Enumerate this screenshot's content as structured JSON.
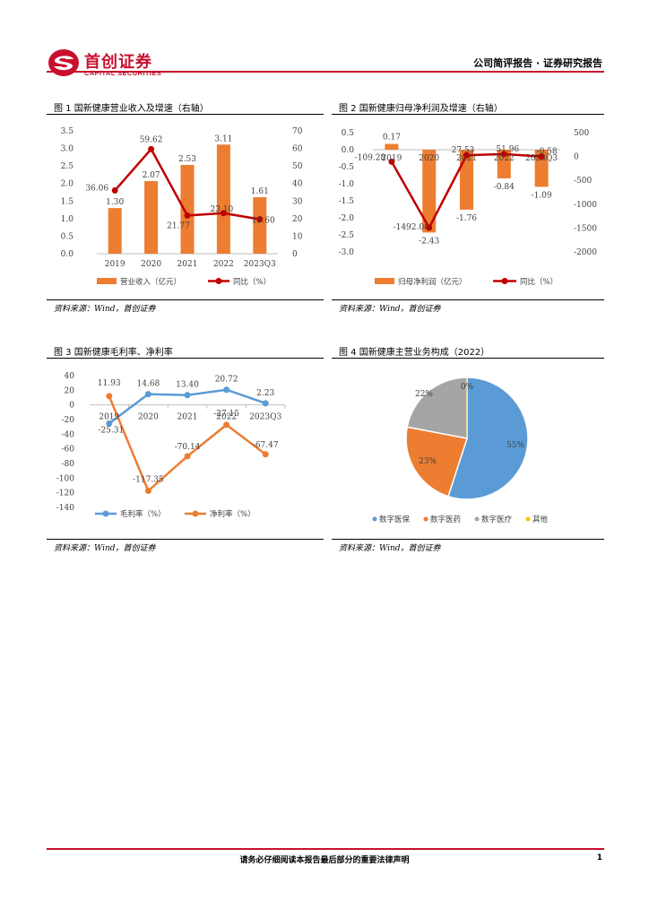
{
  "header": {
    "logo_cn": "首创证券",
    "logo_en": "CAPITAL SECURITIES",
    "report_type": "公司简评报告 · 证券研究报告",
    "brand_color": "#c8102e"
  },
  "figures": [
    {
      "title": "图 1  国新健康营业收入及增速（右轴）",
      "source": "资料来源：Wind，首创证券"
    },
    {
      "title": "图 2  国新健康归母净利润及增速（右轴）",
      "source": "资料来源：Wind，首创证券"
    },
    {
      "title": "图 3  国新健康毛利率、净利率",
      "source": "资料来源：Wind，首创证券"
    },
    {
      "title": "图 4  国新健康主营业务构成（2022）",
      "source": "资料来源：Wind，首创证券"
    }
  ],
  "footer": {
    "disclaimer": "请务必仔细阅读本报告最后部分的重要法律声明",
    "page": "1"
  },
  "chart_data": [
    {
      "type": "bar",
      "categories": [
        "2019",
        "2020",
        "2021",
        "2022",
        "2023Q3"
      ],
      "series": [
        {
          "name": "营业收入（亿元）",
          "type": "bar",
          "axis": "left",
          "values": [
            1.3,
            2.07,
            2.53,
            3.11,
            1.61
          ],
          "labels": [
            "1.30",
            "2.07",
            "2.53",
            "3.11",
            "1.61"
          ],
          "color": "#ed7d31"
        },
        {
          "name": "同比（%）",
          "type": "line",
          "axis": "right",
          "values": [
            36.06,
            59.62,
            21.77,
            23.1,
            19.6
          ],
          "labels": [
            "36.06",
            "59.62",
            "21.77",
            "23.10",
            "19.60"
          ],
          "color": "#c00000"
        }
      ],
      "ylim": [
        0,
        3.5
      ],
      "yticks": [
        "0.0",
        "0.5",
        "1.0",
        "1.5",
        "2.0",
        "2.5",
        "3.0",
        "3.5"
      ],
      "y2lim": [
        0,
        70
      ],
      "y2ticks": [
        "0",
        "10",
        "20",
        "30",
        "40",
        "50",
        "60",
        "70"
      ],
      "legend": "bottom"
    },
    {
      "type": "bar",
      "categories": [
        "2019",
        "2020",
        "2021",
        "2022",
        "2023Q3"
      ],
      "series": [
        {
          "name": "归母净利润（亿元）",
          "type": "bar",
          "axis": "left",
          "values": [
            0.17,
            -2.43,
            -1.76,
            -0.84,
            -1.09
          ],
          "labels": [
            "0.17",
            "-2.43",
            "-1.76",
            "-0.84",
            "-1.09"
          ],
          "color": "#ed7d31"
        },
        {
          "name": "同比（%）",
          "type": "line",
          "axis": "right",
          "values": [
            -109.28,
            -1492.06,
            27.53,
            51.96,
            -0.58
          ],
          "labels": [
            "-109.28",
            "-1492.06",
            "27.53",
            "51.96",
            "-0.58"
          ],
          "color": "#c00000"
        }
      ],
      "ylim": [
        -3.0,
        0.5
      ],
      "yticks": [
        "-3.0",
        "-2.5",
        "-2.0",
        "-1.5",
        "-1.0",
        "-0.5",
        "0.0",
        "0.5"
      ],
      "y2lim": [
        -2000,
        500
      ],
      "y2ticks": [
        "-2000",
        "-1500",
        "-1000",
        "-500",
        "0",
        "500"
      ],
      "legend": "bottom"
    },
    {
      "type": "line",
      "categories": [
        "2019",
        "2020",
        "2021",
        "2022",
        "2023Q3"
      ],
      "series": [
        {
          "name": "毛利率（%）",
          "values": [
            -25.31,
            14.68,
            13.4,
            20.72,
            2.23
          ],
          "labels": [
            "-25.31",
            "14.68",
            "13.40",
            "20.72",
            "2.23"
          ],
          "color": "#5b9bd5"
        },
        {
          "name": "净利率（%）",
          "values": [
            11.93,
            -117.35,
            -70.14,
            -27.15,
            -67.47
          ],
          "labels": [
            "11.93",
            "-117.35",
            "-70.14",
            "-27.15",
            "-67.47"
          ],
          "color": "#ed7d31"
        }
      ],
      "ylim": [
        -140,
        40
      ],
      "yticks": [
        "-140",
        "-120",
        "-100",
        "-80",
        "-60",
        "-40",
        "-20",
        "0",
        "20",
        "40"
      ],
      "legend": "bottom"
    },
    {
      "type": "pie",
      "slices": [
        {
          "name": "数字医保",
          "value": 55,
          "label": "55%",
          "color": "#5b9bd5"
        },
        {
          "name": "数字医药",
          "value": 23,
          "label": "23%",
          "color": "#ed7d31"
        },
        {
          "name": "数字医疗",
          "value": 22,
          "label": "22%",
          "color": "#a5a5a5"
        },
        {
          "name": "其他",
          "value": 0,
          "label": "0%",
          "color": "#ffc000"
        }
      ],
      "legend": "bottom"
    }
  ]
}
